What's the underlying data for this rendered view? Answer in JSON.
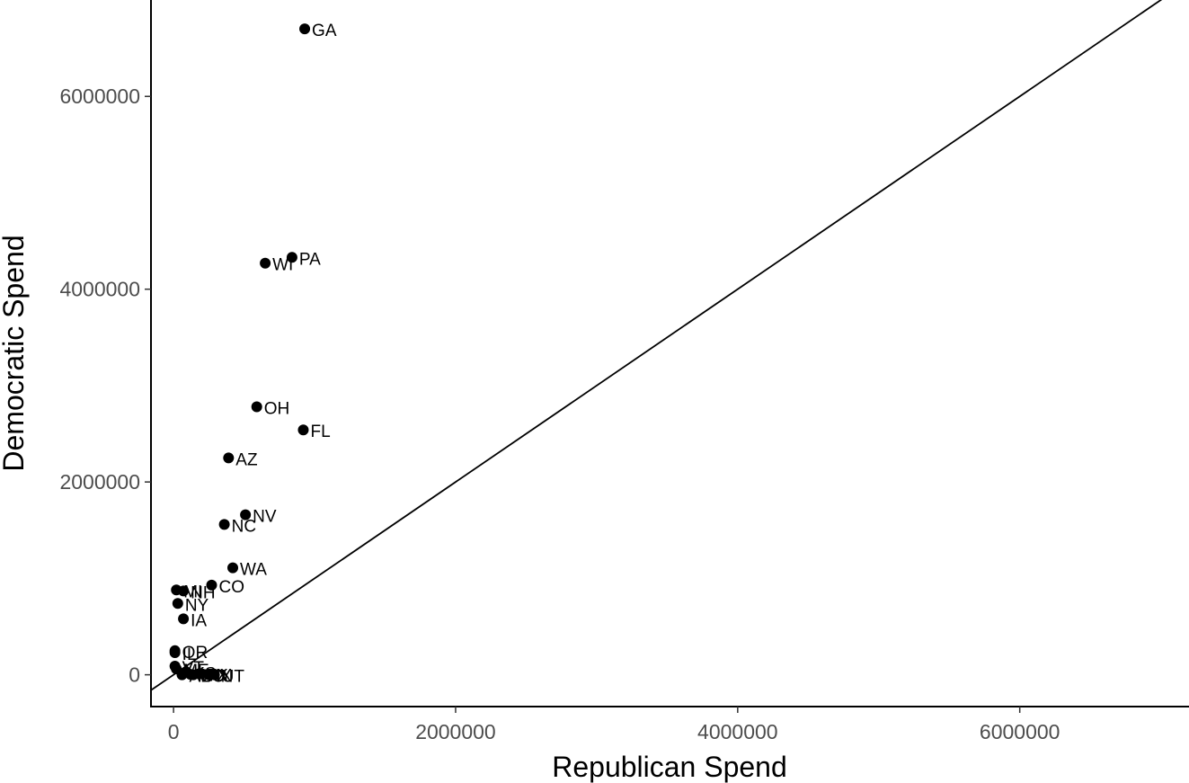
{
  "chart_data": {
    "type": "scatter",
    "title": "",
    "xlabel": "Republican Spend",
    "ylabel": "Democratic Spend",
    "xlim": [
      -160000,
      7200000
    ],
    "ylim": [
      -330000,
      7000000
    ],
    "xticks": [
      0,
      2000000,
      4000000,
      6000000
    ],
    "xtick_labels": [
      "0",
      "2000000",
      "4000000",
      "6000000"
    ],
    "yticks": [
      0,
      2000000,
      4000000,
      6000000
    ],
    "ytick_labels": [
      "0",
      "2000000",
      "4000000",
      "6000000"
    ],
    "grid": false,
    "legend": "none",
    "reference_line": {
      "slope": 1,
      "intercept": 0
    },
    "points": [
      {
        "label": "GA",
        "x": 930000,
        "y": 6700000
      },
      {
        "label": "PA",
        "x": 840000,
        "y": 4330000
      },
      {
        "label": "WI",
        "x": 650000,
        "y": 4270000
      },
      {
        "label": "OH",
        "x": 590000,
        "y": 2780000
      },
      {
        "label": "FL",
        "x": 920000,
        "y": 2540000
      },
      {
        "label": "AZ",
        "x": 390000,
        "y": 2250000
      },
      {
        "label": "NV",
        "x": 510000,
        "y": 1660000
      },
      {
        "label": "NC",
        "x": 360000,
        "y": 1560000
      },
      {
        "label": "WA",
        "x": 420000,
        "y": 1110000
      },
      {
        "label": "CO",
        "x": 270000,
        "y": 930000
      },
      {
        "label": "NH",
        "x": 70000,
        "y": 870000
      },
      {
        "label": "MI",
        "x": 20000,
        "y": 880000
      },
      {
        "label": "NY",
        "x": 30000,
        "y": 740000
      },
      {
        "label": "IA",
        "x": 70000,
        "y": 580000
      },
      {
        "label": "OR",
        "x": 10000,
        "y": 250000
      },
      {
        "label": "IL",
        "x": 10000,
        "y": 230000
      },
      {
        "label": "VT",
        "x": 10000,
        "y": 90000
      },
      {
        "label": "ME",
        "x": 20000,
        "y": 60000
      },
      {
        "label": "KS",
        "x": 90000,
        "y": 30000
      },
      {
        "label": "TX",
        "x": 180000,
        "y": 10000
      },
      {
        "label": "AL",
        "x": 60000,
        "y": 0
      },
      {
        "label": "SC",
        "x": 140000,
        "y": 0
      },
      {
        "label": "UT",
        "x": 290000,
        "y": 0
      },
      {
        "label": "MO",
        "x": 120000,
        "y": 5000
      },
      {
        "label": "KY",
        "x": 200000,
        "y": 10000
      },
      {
        "label": "IN",
        "x": 250000,
        "y": 0
      }
    ]
  }
}
